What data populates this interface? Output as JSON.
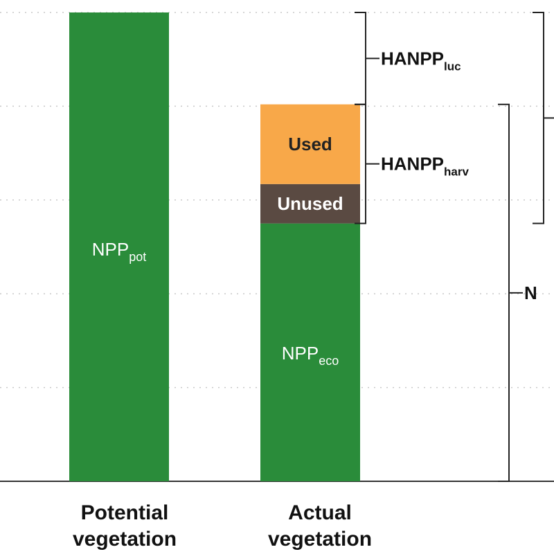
{
  "chart_data": {
    "type": "bar",
    "categories": [
      "Potential vegetation",
      "Actual vegetation"
    ],
    "category_lines": [
      [
        "Potential",
        "vegetation"
      ],
      [
        "Actual",
        "vegetation"
      ]
    ],
    "ylim": [
      0,
      5
    ],
    "gridlines": [
      1,
      2,
      3,
      4,
      5
    ],
    "grid": true,
    "bars": [
      {
        "category": "Potential vegetation",
        "segments": [
          {
            "key": "npp_pot",
            "value": 5.0,
            "color": "#2a8c3a",
            "label": "NPP",
            "sub": "pot",
            "text_color": "#ffffff"
          }
        ]
      },
      {
        "category": "Actual vegetation",
        "segments": [
          {
            "key": "npp_eco",
            "value": 2.75,
            "color": "#2a8c3a",
            "label": "NPP",
            "sub": "eco",
            "text_color": "#ffffff"
          },
          {
            "key": "unused",
            "value": 0.42,
            "color": "#5a4a42",
            "label": "Unused",
            "sub": "",
            "text_color": "#ffffff"
          },
          {
            "key": "used",
            "value": 0.85,
            "color": "#f8a849",
            "label": "Used",
            "sub": "",
            "text_color": "#222222"
          }
        ]
      }
    ],
    "brackets": [
      {
        "key": "hanpp_luc",
        "label": "HANPP",
        "sub": "luc",
        "from": 4.02,
        "to": 5.0,
        "column": "left"
      },
      {
        "key": "hanpp_harv",
        "label": "HANPP",
        "sub": "harv",
        "from": 2.75,
        "to": 4.02,
        "column": "left"
      },
      {
        "key": "npp_act",
        "label": "N",
        "sub": "",
        "from": 0,
        "to": 4.02,
        "column": "right"
      },
      {
        "key": "hanpp_total",
        "label": "",
        "sub": "",
        "from": 2.75,
        "to": 5.0,
        "column": "far"
      }
    ]
  }
}
